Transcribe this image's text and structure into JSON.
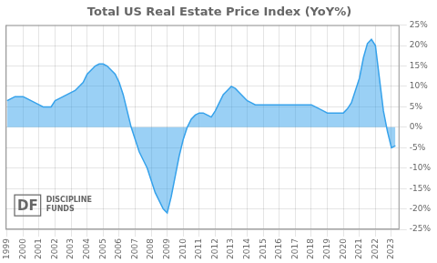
{
  "chart_data": {
    "type": "area",
    "title": "Total US Real Estate Price Index (YoY%)",
    "x": [
      1999.0,
      1999.25,
      1999.5,
      1999.75,
      2000.0,
      2000.25,
      2000.5,
      2000.75,
      2001.0,
      2001.25,
      2001.5,
      2001.75,
      2002.0,
      2002.25,
      2002.5,
      2002.75,
      2003.0,
      2003.25,
      2003.5,
      2003.75,
      2004.0,
      2004.25,
      2004.5,
      2004.75,
      2005.0,
      2005.25,
      2005.5,
      2005.75,
      2006.0,
      2006.25,
      2006.5,
      2006.75,
      2007.0,
      2007.25,
      2007.5,
      2007.75,
      2008.0,
      2008.25,
      2008.5,
      2008.75,
      2009.0,
      2009.25,
      2009.5,
      2009.75,
      2010.0,
      2010.25,
      2010.5,
      2010.75,
      2011.0,
      2011.25,
      2011.5,
      2011.75,
      2012.0,
      2012.25,
      2012.5,
      2012.75,
      2013.0,
      2013.25,
      2013.5,
      2013.75,
      2014.0,
      2014.25,
      2014.5,
      2014.75,
      2015.0,
      2015.25,
      2015.5,
      2015.75,
      2016.0,
      2016.25,
      2016.5,
      2016.75,
      2017.0,
      2017.25,
      2017.5,
      2017.75,
      2018.0,
      2018.25,
      2018.5,
      2018.75,
      2019.0,
      2019.25,
      2019.5,
      2019.75,
      2020.0,
      2020.25,
      2020.5,
      2020.75,
      2021.0,
      2021.25,
      2021.5,
      2021.75,
      2022.0,
      2022.25,
      2022.5,
      2022.75,
      2023.0,
      2023.25
    ],
    "values": [
      6.5,
      7.0,
      7.5,
      7.5,
      7.5,
      7.0,
      6.5,
      6.0,
      5.5,
      5.0,
      5.0,
      5.0,
      6.5,
      7.0,
      7.5,
      8.0,
      8.5,
      9.0,
      10.0,
      11.0,
      13.0,
      14.0,
      15.0,
      15.5,
      15.5,
      15.0,
      14.0,
      13.0,
      11.0,
      8.0,
      4.0,
      0.0,
      -3.0,
      -6.0,
      -8.0,
      -10.0,
      -13.0,
      -16.0,
      -18.0,
      -20.0,
      -21.0,
      -17.0,
      -12.0,
      -7.0,
      -3.0,
      0.0,
      2.0,
      3.0,
      3.5,
      3.5,
      3.0,
      2.5,
      4.0,
      6.0,
      8.0,
      9.0,
      10.0,
      9.5,
      8.5,
      7.5,
      6.5,
      6.0,
      5.5,
      5.5,
      5.5,
      5.5,
      5.5,
      5.5,
      5.5,
      5.5,
      5.5,
      5.5,
      5.5,
      5.5,
      5.5,
      5.5,
      5.5,
      5.0,
      4.5,
      4.0,
      3.5,
      3.5,
      3.5,
      3.5,
      3.5,
      4.5,
      6.0,
      9.0,
      12.0,
      17.0,
      20.5,
      21.5,
      20.0,
      12.0,
      4.0,
      -1.0,
      -5.0,
      -4.5
    ],
    "xlim": [
      1998.9,
      2023.5
    ],
    "xticks": [
      1999,
      2000,
      2001,
      2002,
      2003,
      2004,
      2005,
      2006,
      2007,
      2008,
      2009,
      2010,
      2011,
      2012,
      2013,
      2014,
      2015,
      2016,
      2017,
      2018,
      2019,
      2020,
      2021,
      2022,
      2023
    ],
    "ylim": [
      -25,
      25
    ],
    "yticks": [
      {
        "value": -25,
        "label": "-25%"
      },
      {
        "value": -20,
        "label": "-20%"
      },
      {
        "value": -15,
        "label": "-15%"
      },
      {
        "value": -10,
        "label": "-10%"
      },
      {
        "value": -5,
        "label": "-5%"
      },
      {
        "value": 0,
        "label": "0%"
      },
      {
        "value": 5,
        "label": "5%"
      },
      {
        "value": 10,
        "label": "10%"
      },
      {
        "value": 15,
        "label": "15%"
      },
      {
        "value": 20,
        "label": "20%"
      },
      {
        "value": 25,
        "label": "25%"
      }
    ],
    "grid": true,
    "annotations": [
      "DF",
      "DISCIPLINE\nFUNDS"
    ]
  }
}
